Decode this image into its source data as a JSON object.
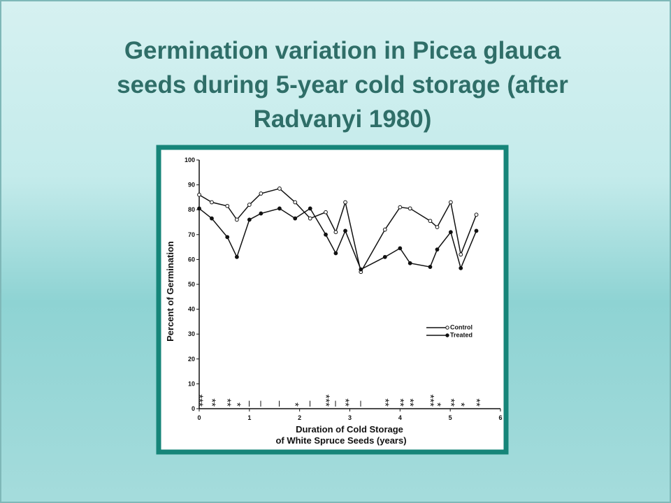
{
  "chart_data": {
    "type": "line",
    "title": [
      "Germination variation in Picea glauca",
      "seeds during 5-year cold storage (after",
      "Radvanyi 1980)"
    ],
    "ylabel": "Percent of Germination",
    "xlabel": [
      "Duration of Cold Storage",
      "of White Spruce Seeds (years)"
    ],
    "xlim": [
      0,
      6
    ],
    "ylim": [
      0,
      100
    ],
    "xticks": [
      0,
      1,
      2,
      3,
      4,
      5,
      6
    ],
    "yticks": [
      0,
      10,
      20,
      30,
      40,
      50,
      60,
      70,
      80,
      90,
      100
    ],
    "legend": "center right",
    "series": [
      {
        "name": "Control",
        "color": "#111111",
        "marker": "open",
        "x": [
          0,
          0.25,
          0.56,
          0.75,
          1.0,
          1.23,
          1.6,
          1.91,
          2.21,
          2.52,
          2.72,
          2.91,
          3.22,
          3.7,
          4.0,
          4.2,
          4.6,
          4.74,
          5.01,
          5.21,
          5.52
        ],
        "values": [
          86,
          83,
          81.5,
          76,
          82,
          86.5,
          88.5,
          83,
          76.5,
          79,
          71,
          83,
          55,
          72,
          81,
          80.5,
          75.5,
          73,
          83,
          62,
          78
        ]
      },
      {
        "name": "Treated",
        "color": "#111111",
        "marker": "filled",
        "x": [
          0,
          0.25,
          0.56,
          0.75,
          1.0,
          1.23,
          1.6,
          1.91,
          2.21,
          2.52,
          2.72,
          2.91,
          3.22,
          3.7,
          4.0,
          4.2,
          4.6,
          4.74,
          5.01,
          5.21,
          5.52
        ],
        "values": [
          80.5,
          76.5,
          69,
          61,
          76,
          78.5,
          80.5,
          76.5,
          80.5,
          70,
          62.5,
          71.5,
          56,
          61,
          64.5,
          58.5,
          57,
          64,
          71,
          56.5,
          71.5
        ]
      }
    ],
    "significance": {
      "x": [
        0,
        0.25,
        0.56,
        0.75,
        1.0,
        1.23,
        1.6,
        1.91,
        2.21,
        2.52,
        2.72,
        2.91,
        3.22,
        3.7,
        4.0,
        4.2,
        4.6,
        4.74,
        5.01,
        5.21,
        5.52
      ],
      "labels": [
        "***",
        "**",
        "**",
        "*",
        "–",
        "–",
        "–",
        "*",
        "–",
        "***",
        "–",
        "**",
        "–",
        "**",
        "**",
        "**",
        "***",
        "*",
        "**",
        "*",
        "**"
      ]
    }
  }
}
